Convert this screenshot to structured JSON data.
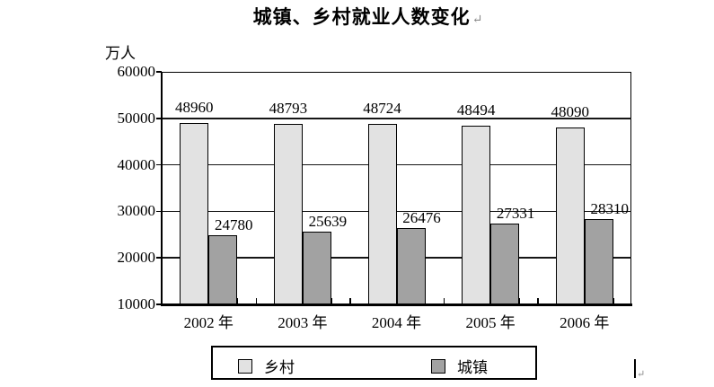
{
  "title": {
    "text": "城镇、乡村就业人数变化",
    "paragraph_mark": "↵"
  },
  "cursor_paragraph_mark": "↵",
  "chart_data": {
    "type": "bar",
    "title": "城镇、乡村就业人数变化",
    "unit_label": "万人",
    "categories": [
      "2002 年",
      "2003 年",
      "2004 年",
      "2005 年",
      "2006 年"
    ],
    "series": [
      {
        "name": "乡村",
        "slug": "rural",
        "color": "#e2e2e2",
        "values": [
          48960,
          48793,
          48724,
          48494,
          48090
        ]
      },
      {
        "name": "城镇",
        "slug": "urban",
        "color": "#a2a2a2",
        "values": [
          24780,
          25639,
          26476,
          27331,
          28310
        ]
      }
    ],
    "ylim": [
      10000,
      60000
    ],
    "ytick_interval": 10000,
    "ytick_labels": [
      "60000",
      "50000",
      "40000",
      "30000",
      "20000",
      "10000"
    ],
    "grid": true,
    "legend_position": "bottom",
    "legend_entries": [
      "乡村",
      "城镇"
    ]
  }
}
